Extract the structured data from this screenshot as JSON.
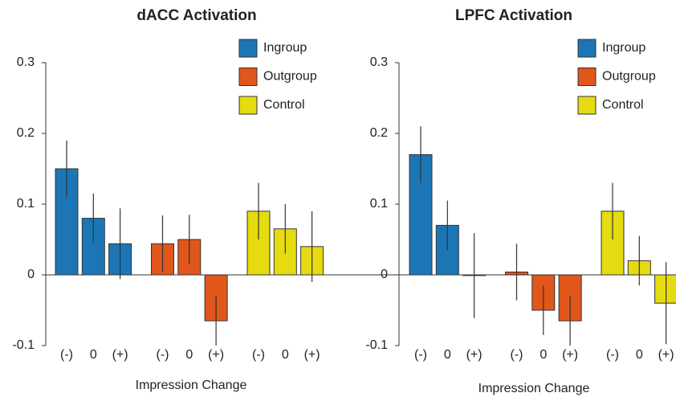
{
  "chart_data": [
    {
      "type": "bar",
      "title": "dACC Activation",
      "x_label": "Impression Change",
      "categories": [
        "(-)",
        "0",
        "(+)"
      ],
      "series": [
        {
          "name": "Ingroup",
          "color": "#1c76b6",
          "values": [
            0.15,
            0.08,
            0.044
          ],
          "errors": [
            0.04,
            0.035,
            0.05
          ]
        },
        {
          "name": "Outgroup",
          "color": "#e0561b",
          "values": [
            0.044,
            0.05,
            -0.065
          ],
          "errors": [
            0.04,
            0.035,
            0.035
          ]
        },
        {
          "name": "Control",
          "color": "#e5db10",
          "values": [
            0.09,
            0.065,
            0.04
          ],
          "errors": [
            0.04,
            0.035,
            0.05
          ]
        }
      ],
      "ylim": [
        -0.1,
        0.3
      ],
      "yticks": [
        -0.1,
        0,
        0.1,
        0.2,
        0.3
      ]
    },
    {
      "type": "bar",
      "title": "LPFC Activation",
      "x_label": "Impression Change",
      "categories": [
        "(-)",
        "0",
        "(+)"
      ],
      "series": [
        {
          "name": "Ingroup",
          "color": "#1c76b6",
          "values": [
            0.17,
            0.07,
            -0.001
          ],
          "errors": [
            0.04,
            0.035,
            0.06
          ]
        },
        {
          "name": "Outgroup",
          "color": "#e0561b",
          "values": [
            0.004,
            -0.05,
            -0.065
          ],
          "errors": [
            0.04,
            0.035,
            0.035
          ]
        },
        {
          "name": "Control",
          "color": "#e5db10",
          "values": [
            0.09,
            0.02,
            -0.04
          ],
          "errors": [
            0.04,
            0.035,
            0.058
          ]
        }
      ],
      "ylim": [
        -0.1,
        0.3
      ],
      "yticks": [
        -0.1,
        0,
        0.1,
        0.2,
        0.3
      ]
    }
  ]
}
